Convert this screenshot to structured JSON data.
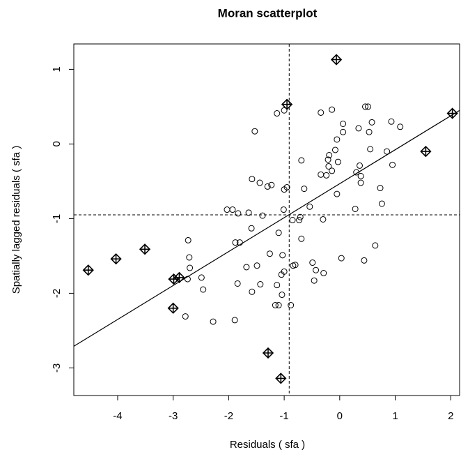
{
  "chart_data": {
    "type": "scatter",
    "title": "Moran scatterplot",
    "x_label": "Residuals ( sfa )",
    "y_label": "Spatially lagged residuals ( sfa )",
    "xlim": [
      -4.79,
      2.16
    ],
    "ylim": [
      -3.37,
      1.34
    ],
    "xticks": [
      -4,
      -3,
      -2,
      -1,
      0,
      1,
      2
    ],
    "yticks": [
      -3,
      -2,
      -1,
      0,
      1
    ],
    "color": "#000000",
    "x": [
      -2.73,
      -2.71,
      -2.7,
      -2.74,
      -2.49,
      -2.46,
      -2.78,
      -2.28,
      -2.03,
      -1.93,
      -1.88,
      -1.8,
      -1.83,
      -1.89,
      -1.84,
      -1.68,
      -1.64,
      -1.59,
      -1.58,
      -1.58,
      -1.53,
      -1.49,
      -1.44,
      -1.43,
      -1.39,
      -1.3,
      -1.23,
      -1.26,
      -1.16,
      -1.1,
      -1.13,
      -1.1,
      -1.05,
      -1.03,
      -1.0,
      -1.0,
      -1.01,
      -0.95,
      -1.13,
      -1.0,
      -1.04,
      -0.88,
      -0.85,
      -0.84,
      -0.8,
      -0.73,
      -0.71,
      -0.69,
      -0.64,
      -0.69,
      -0.54,
      -0.49,
      -0.46,
      -0.43,
      -0.34,
      -0.3,
      -0.29,
      -0.34,
      -0.24,
      -0.2,
      -0.21,
      -0.19,
      -0.14,
      -0.14,
      -0.08,
      -0.05,
      0.03,
      0.06,
      0.06,
      0.28,
      0.3,
      0.38,
      0.36,
      0.38,
      0.44,
      0.46,
      0.34,
      0.51,
      0.53,
      0.58,
      -0.05,
      -0.03,
      0.64,
      0.73,
      0.55,
      0.85,
      0.95,
      0.76,
      1.09,
      0.93
    ],
    "values": [
      -1.29,
      -1.52,
      -1.66,
      -1.81,
      -1.79,
      -1.95,
      -2.31,
      -2.38,
      -0.88,
      -0.88,
      -1.32,
      -1.32,
      -0.93,
      -2.36,
      -1.87,
      -1.65,
      -0.92,
      -1.13,
      -0.47,
      -1.98,
      0.17,
      -1.63,
      -0.52,
      -1.88,
      -0.96,
      -0.57,
      -0.55,
      -1.47,
      -2.16,
      -2.16,
      -1.89,
      -1.19,
      -1.75,
      -1.49,
      -1.71,
      -0.61,
      -0.88,
      -0.58,
      0.41,
      0.45,
      -2.02,
      -2.16,
      -1.02,
      -1.63,
      -1.62,
      -1.02,
      -0.98,
      -0.22,
      -0.6,
      -1.27,
      -0.84,
      -1.59,
      -1.83,
      -1.69,
      0.42,
      -1.01,
      -1.73,
      -0.41,
      -0.42,
      -0.3,
      -0.21,
      -0.15,
      -0.36,
      0.46,
      -0.08,
      0.06,
      -1.53,
      0.27,
      0.16,
      -0.87,
      -0.38,
      -0.43,
      -0.29,
      -0.52,
      -1.56,
      0.5,
      0.21,
      0.5,
      0.16,
      0.29,
      -0.67,
      -0.24,
      -1.36,
      -0.59,
      -0.07,
      -0.1,
      -0.28,
      -0.8,
      0.23,
      0.3
    ],
    "influential": {
      "x": [
        -4.53,
        -4.03,
        -3.51,
        -2.99,
        -2.89,
        -3.0,
        -1.29,
        -1.06,
        -0.95,
        -0.06,
        1.55,
        2.03
      ],
      "values": [
        -1.69,
        -1.54,
        -1.41,
        -1.81,
        -1.79,
        -2.2,
        -2.8,
        -3.14,
        0.53,
        1.13,
        -0.1,
        0.41
      ]
    },
    "regression_line": {
      "x": [
        -4.79,
        2.16
      ],
      "values": [
        -2.71,
        0.45
      ]
    },
    "mean_x": -0.91,
    "mean_y": -0.95
  }
}
